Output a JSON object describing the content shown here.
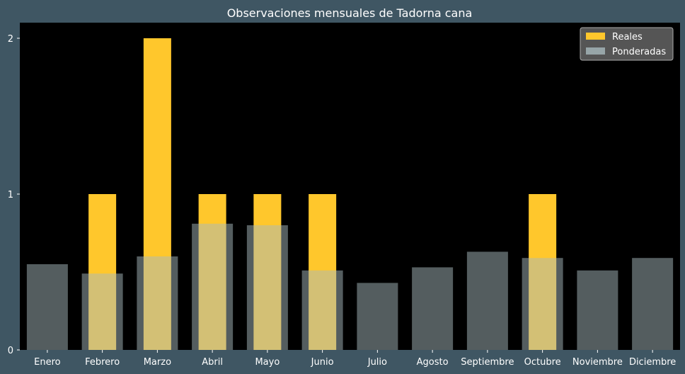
{
  "chart_data": {
    "type": "bar",
    "title": "Observaciones mensuales de Tadorna cana",
    "xlabel": "",
    "ylabel": "",
    "categories": [
      "Enero",
      "Febrero",
      "Marzo",
      "Abril",
      "Mayo",
      "Junio",
      "Julio",
      "Agosto",
      "Septiembre",
      "Octubre",
      "Noviembre",
      "Diciembre"
    ],
    "ylim": [
      0,
      2.1
    ],
    "yticks": [
      "0",
      "1",
      "2"
    ],
    "series": [
      {
        "name": "Reales",
        "color": "#ffc72c",
        "values": [
          0,
          1,
          2,
          1,
          1,
          1,
          0,
          0,
          0,
          1,
          0,
          0
        ]
      },
      {
        "name": "Ponderadas",
        "color": "#a7b9bd",
        "opacity": 0.5,
        "values": [
          0.55,
          0.49,
          0.6,
          0.81,
          0.8,
          0.51,
          0.43,
          0.53,
          0.63,
          0.59,
          0.51,
          0.59
        ]
      }
    ],
    "legend": {
      "position": "top-right"
    },
    "grid": false,
    "background": "#000000",
    "figure_background": "#3f5663"
  }
}
